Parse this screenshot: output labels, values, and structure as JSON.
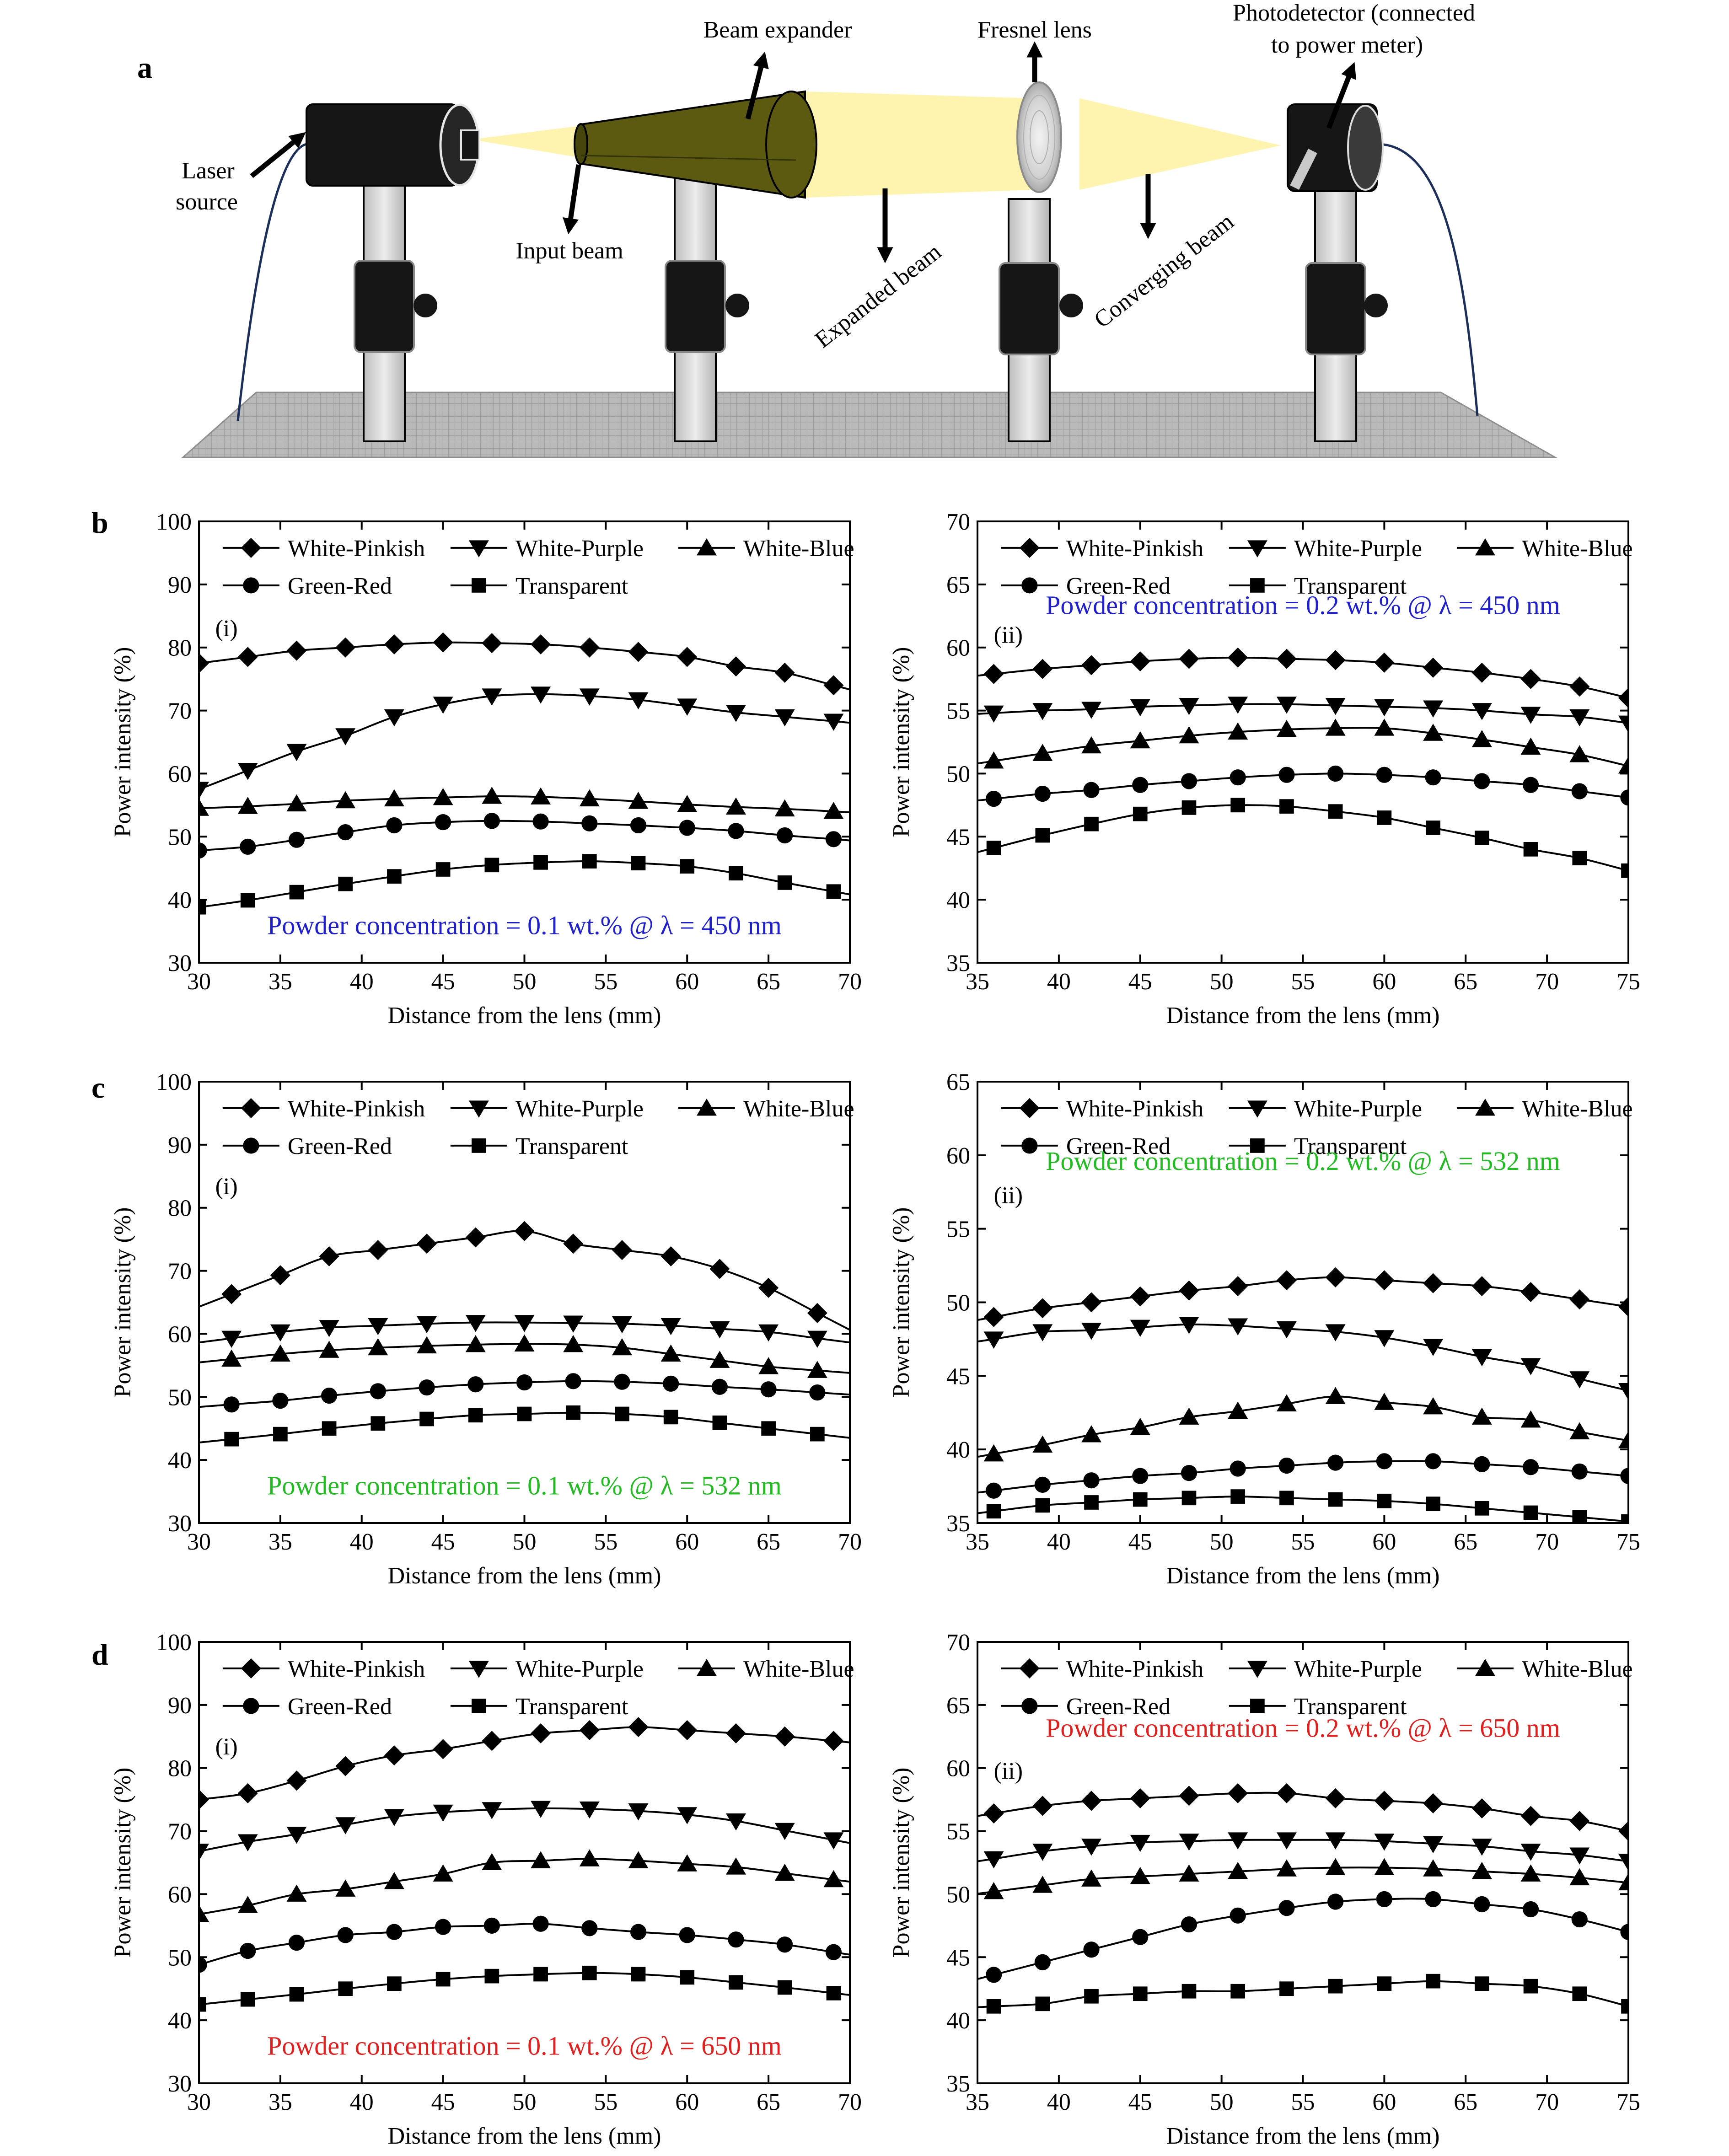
{
  "schematic": {
    "panel_letter": "a",
    "labels": {
      "laser_line1": "Laser",
      "laser_line2": "source",
      "beam_expander": "Beam expander",
      "input_beam": "Input beam",
      "expanded_beam": "Expanded beam",
      "fresnel_lens": "Fresnel lens",
      "converging_beam": "Converging beam",
      "photodetector_line1": "Photodetector (connected",
      "photodetector_line2": "to power meter)"
    },
    "colors": {
      "beam": "#fff3b0",
      "expander": "#5c5a10",
      "mount": "#161616",
      "post": "#d4d4d4",
      "table": "#b9b9b9"
    }
  },
  "series_names": [
    "White-Pinkish",
    "White-Purple",
    "White-Blue",
    "Green-Red",
    "Transparent"
  ],
  "series_markers": [
    "diamond",
    "triangle-down",
    "triangle-up",
    "circle",
    "square"
  ],
  "axis_text": {
    "xlabel": "Distance from the lens (mm)",
    "ylabel": "Power intensity (%)"
  },
  "chart_data": [
    {
      "type": "line",
      "panel": "b",
      "subplot": "(i)",
      "annotation": "Powder concentration = 0.1 wt.% @ λ = 450 nm",
      "annotation_color": "#1f1fcc",
      "xlabel": "Distance from the lens (mm)",
      "ylabel": "Power intensity (%)",
      "xlim": [
        30,
        70
      ],
      "ylim": [
        30,
        100
      ],
      "xticks": [
        30,
        35,
        40,
        45,
        50,
        55,
        60,
        65,
        70
      ],
      "yticks": [
        30,
        40,
        50,
        60,
        70,
        80,
        90,
        100
      ],
      "x": [
        30,
        33,
        36,
        39,
        42,
        45,
        48,
        51,
        54,
        57,
        60,
        63,
        66,
        69
      ],
      "series": [
        {
          "name": "White-Pinkish",
          "values": [
            77.5,
            78.5,
            79.5,
            80.0,
            80.5,
            80.8,
            80.7,
            80.5,
            80.0,
            79.3,
            78.5,
            77.0,
            76.0,
            74.0
          ]
        },
        {
          "name": "White-Purple",
          "values": [
            57.5,
            60.5,
            63.5,
            66.0,
            69.0,
            71.0,
            72.3,
            72.6,
            72.3,
            71.7,
            70.7,
            69.7,
            69.0,
            68.3
          ]
        },
        {
          "name": "White-Blue",
          "values": [
            54.5,
            54.8,
            55.2,
            55.7,
            56.0,
            56.2,
            56.4,
            56.3,
            56.0,
            55.6,
            55.1,
            54.7,
            54.4,
            54.0
          ]
        },
        {
          "name": "Green-Red",
          "values": [
            47.8,
            48.4,
            49.5,
            50.7,
            51.8,
            52.3,
            52.5,
            52.4,
            52.1,
            51.8,
            51.4,
            50.9,
            50.2,
            49.6
          ]
        },
        {
          "name": "Transparent",
          "values": [
            38.8,
            39.9,
            41.2,
            42.5,
            43.7,
            44.8,
            45.5,
            45.9,
            46.1,
            45.8,
            45.3,
            44.2,
            42.7,
            41.3
          ]
        }
      ]
    },
    {
      "type": "line",
      "panel": "b",
      "subplot": "(ii)",
      "annotation": "Powder concentration = 0.2 wt.% @ λ = 450 nm",
      "annotation_color": "#1f1fcc",
      "xlabel": "Distance from the lens (mm)",
      "ylabel": "Power intensity (%)",
      "xlim": [
        35,
        75
      ],
      "ylim": [
        35,
        70
      ],
      "xticks": [
        35,
        40,
        45,
        50,
        55,
        60,
        65,
        70,
        75
      ],
      "yticks": [
        35,
        40,
        45,
        50,
        55,
        60,
        65,
        70
      ],
      "x": [
        36,
        39,
        42,
        45,
        48,
        51,
        54,
        57,
        60,
        63,
        66,
        69,
        72,
        75
      ],
      "series": [
        {
          "name": "White-Pinkish",
          "values": [
            57.9,
            58.3,
            58.6,
            58.9,
            59.1,
            59.2,
            59.1,
            59.0,
            58.8,
            58.4,
            58.0,
            57.5,
            56.9,
            56.0
          ]
        },
        {
          "name": "White-Purple",
          "values": [
            54.8,
            55.0,
            55.1,
            55.3,
            55.4,
            55.5,
            55.5,
            55.4,
            55.3,
            55.2,
            55.0,
            54.7,
            54.5,
            54.0
          ]
        },
        {
          "name": "White-Blue",
          "values": [
            51.0,
            51.6,
            52.2,
            52.6,
            53.0,
            53.3,
            53.5,
            53.6,
            53.6,
            53.2,
            52.7,
            52.1,
            51.5,
            50.6
          ]
        },
        {
          "name": "Green-Red",
          "values": [
            48.0,
            48.4,
            48.7,
            49.1,
            49.4,
            49.7,
            49.9,
            50.0,
            49.9,
            49.7,
            49.4,
            49.1,
            48.6,
            48.1
          ]
        },
        {
          "name": "Transparent",
          "values": [
            44.1,
            45.1,
            46.0,
            46.8,
            47.3,
            47.5,
            47.4,
            47.0,
            46.5,
            45.7,
            44.9,
            44.0,
            43.3,
            42.3
          ]
        }
      ]
    },
    {
      "type": "line",
      "panel": "c",
      "subplot": "(i)",
      "annotation": "Powder concentration = 0.1 wt.% @ λ = 532 nm",
      "annotation_color": "#22bb22",
      "xlabel": "Distance from the lens (mm)",
      "ylabel": "Power intensity (%)",
      "xlim": [
        30,
        70
      ],
      "ylim": [
        30,
        100
      ],
      "xticks": [
        30,
        35,
        40,
        45,
        50,
        55,
        60,
        65,
        70
      ],
      "yticks": [
        30,
        40,
        50,
        60,
        70,
        80,
        90,
        100
      ],
      "x": [
        32,
        35,
        38,
        41,
        44,
        47,
        50,
        53,
        56,
        59,
        62,
        65,
        68
      ],
      "series": [
        {
          "name": "White-Pinkish",
          "values": [
            66.3,
            69.3,
            72.3,
            73.3,
            74.3,
            75.3,
            76.3,
            74.3,
            73.3,
            72.3,
            70.3,
            67.3,
            63.3
          ]
        },
        {
          "name": "White-Purple",
          "values": [
            59.3,
            60.3,
            61.0,
            61.3,
            61.6,
            61.8,
            61.8,
            61.7,
            61.6,
            61.3,
            60.8,
            60.3,
            59.3
          ]
        },
        {
          "name": "White-Blue",
          "values": [
            56.0,
            56.8,
            57.4,
            57.8,
            58.1,
            58.3,
            58.4,
            58.3,
            57.8,
            56.8,
            55.8,
            54.8,
            54.2
          ]
        },
        {
          "name": "Green-Red",
          "values": [
            48.8,
            49.4,
            50.2,
            50.9,
            51.5,
            52.0,
            52.3,
            52.5,
            52.4,
            52.1,
            51.6,
            51.2,
            50.7
          ]
        },
        {
          "name": "Transparent",
          "values": [
            43.3,
            44.1,
            45.0,
            45.8,
            46.5,
            47.1,
            47.3,
            47.5,
            47.3,
            46.8,
            45.9,
            45.0,
            44.1
          ]
        }
      ]
    },
    {
      "type": "line",
      "panel": "c",
      "subplot": "(ii)",
      "annotation": "Powder concentration = 0.2 wt.% @ λ = 532 nm",
      "annotation_color": "#22bb22",
      "xlabel": "Distance from the lens (mm)",
      "ylabel": "Power intensity (%)",
      "xlim": [
        35,
        75
      ],
      "ylim": [
        35,
        65
      ],
      "xticks": [
        35,
        40,
        45,
        50,
        55,
        60,
        65,
        70,
        75
      ],
      "yticks": [
        35,
        40,
        45,
        50,
        55,
        60,
        65
      ],
      "x": [
        36,
        39,
        42,
        45,
        48,
        51,
        54,
        57,
        60,
        63,
        66,
        69,
        72,
        75
      ],
      "series": [
        {
          "name": "White-Pinkish",
          "values": [
            49.0,
            49.6,
            50.0,
            50.4,
            50.8,
            51.1,
            51.5,
            51.7,
            51.5,
            51.3,
            51.1,
            50.7,
            50.2,
            49.7
          ]
        },
        {
          "name": "White-Purple",
          "values": [
            47.5,
            48.0,
            48.1,
            48.3,
            48.5,
            48.4,
            48.2,
            48.0,
            47.6,
            47.0,
            46.3,
            45.7,
            44.8,
            44.0
          ]
        },
        {
          "name": "White-Blue",
          "values": [
            39.7,
            40.3,
            41.0,
            41.5,
            42.2,
            42.6,
            43.1,
            43.6,
            43.2,
            42.9,
            42.2,
            42.0,
            41.2,
            40.6
          ]
        },
        {
          "name": "Green-Red",
          "values": [
            37.2,
            37.6,
            37.9,
            38.2,
            38.4,
            38.7,
            38.9,
            39.1,
            39.2,
            39.2,
            39.0,
            38.8,
            38.5,
            38.2
          ]
        },
        {
          "name": "Transparent",
          "values": [
            35.8,
            36.2,
            36.4,
            36.6,
            36.7,
            36.8,
            36.7,
            36.6,
            36.5,
            36.3,
            36.0,
            35.7,
            35.4,
            35.1
          ]
        }
      ]
    },
    {
      "type": "line",
      "panel": "d",
      "subplot": "(i)",
      "annotation": "Powder concentration = 0.1 wt.% @ λ = 650 nm",
      "annotation_color": "#e01f1f",
      "xlabel": "Distance from the lens (mm)",
      "ylabel": "Power intensity (%)",
      "xlim": [
        30,
        70
      ],
      "ylim": [
        30,
        100
      ],
      "xticks": [
        30,
        35,
        40,
        45,
        50,
        55,
        60,
        65,
        70
      ],
      "yticks": [
        30,
        40,
        50,
        60,
        70,
        80,
        90,
        100
      ],
      "x": [
        30,
        33,
        36,
        39,
        42,
        45,
        48,
        51,
        54,
        57,
        60,
        63,
        66,
        69
      ],
      "series": [
        {
          "name": "White-Pinkish",
          "values": [
            75.0,
            76.0,
            78.0,
            80.3,
            82.0,
            83.0,
            84.3,
            85.5,
            86.0,
            86.5,
            86.0,
            85.5,
            85.0,
            84.3
          ]
        },
        {
          "name": "White-Purple",
          "values": [
            66.8,
            68.3,
            69.5,
            71.0,
            72.3,
            73.0,
            73.4,
            73.6,
            73.5,
            73.2,
            72.6,
            71.6,
            70.1,
            68.6
          ]
        },
        {
          "name": "White-Blue",
          "values": [
            56.8,
            58.2,
            60.0,
            60.8,
            62.0,
            63.2,
            65.0,
            65.3,
            65.6,
            65.3,
            64.8,
            64.3,
            63.3,
            62.3
          ]
        },
        {
          "name": "Green-Red",
          "values": [
            48.8,
            51.0,
            52.3,
            53.5,
            54.0,
            54.8,
            55.0,
            55.3,
            54.6,
            54.0,
            53.5,
            52.8,
            52.0,
            50.8
          ]
        },
        {
          "name": "Transparent",
          "values": [
            42.5,
            43.3,
            44.1,
            45.0,
            45.8,
            46.5,
            47.0,
            47.3,
            47.5,
            47.3,
            46.8,
            46.0,
            45.2,
            44.3
          ]
        }
      ]
    },
    {
      "type": "line",
      "panel": "d",
      "subplot": "(ii)",
      "annotation": "Powder concentration = 0.2 wt.% @ λ = 650 nm",
      "annotation_color": "#e01f1f",
      "xlabel": "Distance from the lens (mm)",
      "ylabel": "Power intensity (%)",
      "xlim": [
        35,
        75
      ],
      "ylim": [
        35,
        70
      ],
      "xticks": [
        35,
        40,
        45,
        50,
        55,
        60,
        65,
        70,
        75
      ],
      "yticks": [
        35,
        40,
        45,
        50,
        55,
        60,
        65,
        70
      ],
      "x": [
        36,
        39,
        42,
        45,
        48,
        51,
        54,
        57,
        60,
        63,
        66,
        69,
        72,
        75
      ],
      "series": [
        {
          "name": "White-Pinkish",
          "values": [
            56.4,
            57.0,
            57.4,
            57.6,
            57.8,
            58.0,
            58.0,
            57.6,
            57.4,
            57.2,
            56.8,
            56.2,
            55.8,
            55.0
          ]
        },
        {
          "name": "White-Purple",
          "values": [
            52.8,
            53.4,
            53.8,
            54.1,
            54.2,
            54.3,
            54.3,
            54.3,
            54.2,
            54.0,
            53.8,
            53.4,
            53.1,
            52.6
          ]
        },
        {
          "name": "White-Blue",
          "values": [
            50.2,
            50.7,
            51.2,
            51.4,
            51.6,
            51.8,
            52.0,
            52.1,
            52.1,
            52.0,
            51.8,
            51.6,
            51.3,
            50.9
          ]
        },
        {
          "name": "Green-Red",
          "values": [
            43.6,
            44.6,
            45.6,
            46.6,
            47.6,
            48.3,
            48.9,
            49.4,
            49.6,
            49.6,
            49.2,
            48.8,
            48.0,
            47.0
          ]
        },
        {
          "name": "Transparent",
          "values": [
            41.1,
            41.3,
            41.9,
            42.1,
            42.3,
            42.3,
            42.5,
            42.7,
            42.9,
            43.1,
            42.9,
            42.7,
            42.1,
            41.1
          ]
        }
      ]
    }
  ]
}
